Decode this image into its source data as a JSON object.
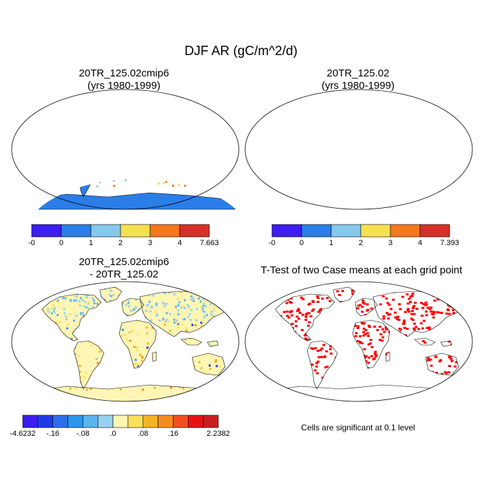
{
  "figure": {
    "title": "DJF AR (gC/m^2/d)"
  },
  "panels": {
    "top_left": {
      "title_line1": "20TR_125.02cmip6",
      "title_line2": "(yrs 1980-1999)",
      "colorbar": {
        "labels": [
          "-0",
          "0",
          "1",
          "2",
          "3",
          "4",
          "7.663"
        ],
        "colors": [
          "#3c1ef0",
          "#2b7de8",
          "#86c8ec",
          "#f5e04e",
          "#f5781e",
          "#d4302a"
        ]
      }
    },
    "top_right": {
      "title_line1": "20TR_125.02",
      "title_line2": "(yrs 1980-1999)",
      "colorbar": {
        "labels": [
          "-0",
          "0",
          "1",
          "2",
          "3",
          "4",
          "7.393"
        ],
        "colors": [
          "#3c1ef0",
          "#2b7de8",
          "#86c8ec",
          "#f5e04e",
          "#f5781e",
          "#d4302a"
        ]
      }
    },
    "bottom_left": {
      "title_line1": "20TR_125.02cmip6",
      "title_line2": "- 20TR_125.02",
      "colorbar": {
        "labels": [
          "-4.6232",
          "-.16",
          "-.08",
          ".0",
          ".08",
          ".16",
          "2.2382"
        ],
        "colors": [
          "#3c1ef0",
          "#1e3ce6",
          "#2b6ee8",
          "#2b96ec",
          "#5ab4f0",
          "#96d2f0",
          "#fff5b4",
          "#fae05a",
          "#f5b428",
          "#f58c1e",
          "#f0501e",
          "#e61414",
          "#c81e1e"
        ]
      }
    },
    "bottom_right": {
      "title": "T-Test of two Case means at each grid point",
      "note": "Cells are significant at 0.1 level",
      "signif_color": "#ff0000"
    }
  },
  "colors": {
    "ocean": "#ffffff",
    "coast": "#000000",
    "land_base_abs": "#2b7de8",
    "land_base_diff": "#fff5b4"
  }
}
